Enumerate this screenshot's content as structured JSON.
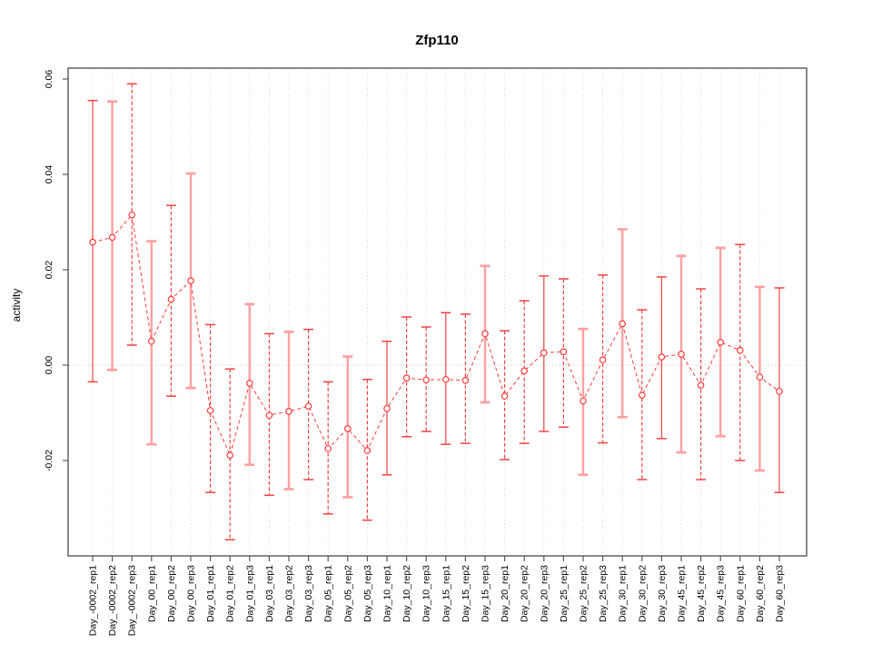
{
  "title": "Zfp110",
  "y_axis_label": "activity",
  "colors": {
    "series": "#ff3b3b",
    "bar_solid": "#f04343",
    "bar_light": "#ffa0a0",
    "bar_dashed": "#f04343",
    "grid": "#d9d9d9",
    "zero_line": "#c8c8c8",
    "axis": "#595959",
    "text": "#000000"
  },
  "chart_data": {
    "type": "scatter",
    "title": "Zfp110",
    "xlabel": "",
    "ylabel": "activity",
    "ylim": [
      -0.04,
      0.0623
    ],
    "grid": "vertical-dotted-per-category, dotted-zero-line",
    "legend": "none",
    "y_ticks": [
      -0.02,
      0.0,
      0.02,
      0.04,
      0.06
    ],
    "y_tick_labels": [
      "-0.02",
      "0.00",
      "0.02",
      "0.04",
      "0.06"
    ],
    "categories": [
      "Day_-0002_rep1",
      "Day_-0002_rep2",
      "Day_-0002_rep3",
      "Day_00_rep1",
      "Day_00_rep2",
      "Day_00_rep3",
      "Day_01_rep1",
      "Day_01_rep2",
      "Day_01_rep3",
      "Day_03_rep1",
      "Day_03_rep2",
      "Day_03_rep3",
      "Day_05_rep1",
      "Day_05_rep2",
      "Day_05_rep3",
      "Day_10_rep1",
      "Day_10_rep2",
      "Day_10_rep3",
      "Day_15_rep1",
      "Day_15_rep2",
      "Day_15_rep3",
      "Day_20_rep1",
      "Day_20_rep2",
      "Day_20_rep3",
      "Day_25_rep1",
      "Day_25_rep2",
      "Day_25_rep3",
      "Day_30_rep1",
      "Day_30_rep2",
      "Day_30_rep3",
      "Day_45_rep1",
      "Day_45_rep2",
      "Day_45_rep3",
      "Day_60_rep1",
      "Day_60_rep2",
      "Day_60_rep3"
    ],
    "values": [
      0.0258,
      0.0268,
      0.0315,
      0.005,
      0.0138,
      0.0177,
      -0.0095,
      -0.0189,
      -0.0038,
      -0.0105,
      -0.0097,
      -0.0086,
      -0.0175,
      -0.0133,
      -0.0179,
      -0.0091,
      -0.0027,
      -0.0031,
      -0.003,
      -0.0032,
      0.0066,
      -0.0065,
      -0.0012,
      0.0026,
      0.0028,
      -0.0075,
      0.0011,
      0.0087,
      -0.0063,
      0.0017,
      0.0023,
      -0.0042,
      0.0048,
      0.0031,
      -0.0025,
      -0.0055
    ],
    "upper": [
      0.0555,
      0.0553,
      0.059,
      0.026,
      0.0335,
      0.0402,
      0.0085,
      -0.0008,
      0.0128,
      0.0066,
      0.007,
      0.0075,
      -0.0035,
      0.0018,
      -0.003,
      0.005,
      0.0101,
      0.008,
      0.011,
      0.0107,
      0.0208,
      0.0072,
      0.0135,
      0.0187,
      0.0181,
      0.0076,
      0.0189,
      0.0285,
      0.0116,
      0.0185,
      0.0229,
      0.016,
      0.0246,
      0.0253,
      0.0164,
      0.0162
    ],
    "lower": [
      -0.0035,
      -0.001,
      0.0042,
      -0.0166,
      -0.0065,
      -0.0048,
      -0.0267,
      -0.0366,
      -0.0209,
      -0.0273,
      -0.026,
      -0.024,
      -0.0312,
      -0.0277,
      -0.0325,
      -0.023,
      -0.015,
      -0.0139,
      -0.0166,
      -0.0164,
      -0.0078,
      -0.0198,
      -0.0164,
      -0.0139,
      -0.013,
      -0.023,
      -0.0163,
      -0.0109,
      -0.024,
      -0.0154,
      -0.0183,
      -0.024,
      -0.0149,
      -0.02,
      -0.0221,
      -0.0267
    ],
    "bar_styles": [
      "solid",
      "light",
      "dashed",
      "light",
      "dashed",
      "light",
      "dashed",
      "dashed",
      "light",
      "dashed",
      "light",
      "dashed",
      "dashed",
      "light",
      "dashed",
      "solid",
      "dashed",
      "dashed",
      "solid",
      "dashed",
      "light",
      "dashed",
      "dashed",
      "solid",
      "dashed",
      "light",
      "dashed",
      "light",
      "dashed",
      "solid",
      "light",
      "dashed",
      "light",
      "dashed",
      "light",
      "solid"
    ]
  }
}
